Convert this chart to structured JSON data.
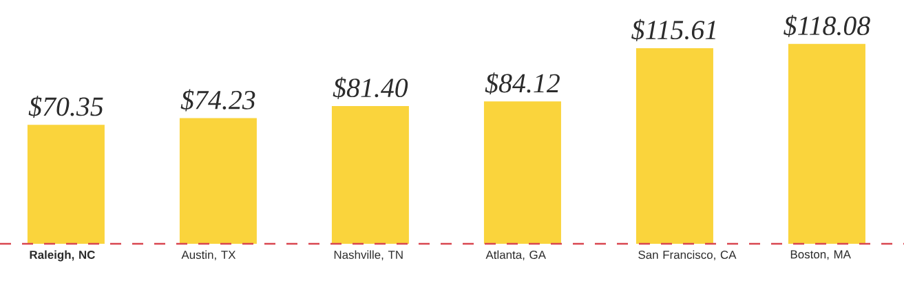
{
  "chart_data": {
    "type": "bar",
    "categories": [
      "**Raleigh, NC**",
      "Austin, TX",
      "Nashville, TN",
      "Atlanta, GA",
      "San Francisco, CA",
      "Boston, MA"
    ],
    "values": [
      70.35,
      74.23,
      81.4,
      84.12,
      115.61,
      118.08
    ],
    "value_labels": [
      "$70.35",
      "$74.23",
      "$81.40",
      "$84.12",
      "$115.61",
      "$118.08"
    ],
    "color": "#fad43c",
    "ref_lines": [
      {
        "axis": "y",
        "value": 0,
        "color": "#d9454f",
        "line_style": "dashed"
      }
    ]
  }
}
